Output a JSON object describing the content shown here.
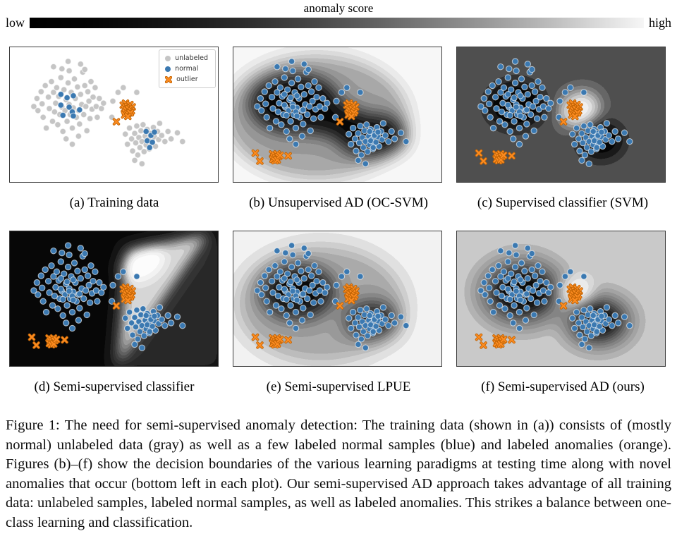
{
  "colorbar": {
    "title": "anomaly score",
    "low": "low",
    "high": "high"
  },
  "legend": {
    "unlabeled": "unlabeled",
    "normal": "normal",
    "outlier": "outlier"
  },
  "panels": [
    {
      "id": "a",
      "caption": "(a) Training data",
      "unlabeled_color": "gray",
      "show_novel": false,
      "background": "plain-white",
      "legend": true
    },
    {
      "id": "b",
      "caption": "(b) Unsupervised AD (OC-SVM)",
      "unlabeled_color": "blue",
      "show_novel": true,
      "background": "oc-svm-density-contours",
      "legend": false
    },
    {
      "id": "c",
      "caption": "(c) Supervised classifier (SVM)",
      "unlabeled_color": "blue",
      "show_novel": true,
      "background": "svm-decision-contours",
      "legend": false
    },
    {
      "id": "d",
      "caption": "(d) Semi-supervised classifier",
      "unlabeled_color": "blue",
      "show_novel": true,
      "background": "classifier-wedge-contours",
      "legend": false
    },
    {
      "id": "e",
      "caption": "(e) Semi-supervised LPUE",
      "unlabeled_color": "blue",
      "show_novel": true,
      "background": "lpue-density-contours",
      "legend": false
    },
    {
      "id": "f",
      "caption": "(f) Semi-supervised AD (ours)",
      "unlabeled_color": "blue",
      "show_novel": true,
      "background": "sad-density-contours",
      "legend": false
    }
  ],
  "figure_caption": "Figure 1: The need for semi-supervised anomaly detection: The training data (shown in (a)) consists of (mostly normal) unlabeled data (gray) as well as a few labeled normal samples (blue) and labeled anomalies (orange). Figures (b)–(f) show the decision boundaries of the various learning paradigms at testing time along with novel anomalies that occur (bottom left in each plot). Our semi-supervised AD approach takes advantage of all training data: unlabeled samples, labeled normal samples, as well as labeled anomalies. This strikes a balance between one-class learning and classification.",
  "colors": {
    "unlabeled": "#c5c5c5",
    "normal": "#3b79b1",
    "outlier": "#fd8c21",
    "outlier_edge": "#c06405",
    "marker_rim": "rgba(255,255,255,0.6)",
    "anomaly_score_low": "#000000",
    "anomaly_score_high": "#f6f6f6"
  },
  "points": {
    "cluster_big": [
      [
        0.115,
        0.44
      ],
      [
        0.13,
        0.38
      ],
      [
        0.135,
        0.47
      ],
      [
        0.15,
        0.33
      ],
      [
        0.155,
        0.42
      ],
      [
        0.16,
        0.52
      ],
      [
        0.17,
        0.285
      ],
      [
        0.175,
        0.6
      ],
      [
        0.185,
        0.37
      ],
      [
        0.19,
        0.455
      ],
      [
        0.2,
        0.255
      ],
      [
        0.205,
        0.55
      ],
      [
        0.21,
        0.335
      ],
      [
        0.215,
        0.48
      ],
      [
        0.22,
        0.415
      ],
      [
        0.225,
        0.3
      ],
      [
        0.23,
        0.575
      ],
      [
        0.235,
        0.365
      ],
      [
        0.24,
        0.5
      ],
      [
        0.245,
        0.225
      ],
      [
        0.25,
        0.445
      ],
      [
        0.255,
        0.625
      ],
      [
        0.26,
        0.315
      ],
      [
        0.265,
        0.47
      ],
      [
        0.27,
        0.39
      ],
      [
        0.275,
        0.55
      ],
      [
        0.28,
        0.265
      ],
      [
        0.285,
        0.425
      ],
      [
        0.29,
        0.5
      ],
      [
        0.295,
        0.335
      ],
      [
        0.3,
        0.6
      ],
      [
        0.305,
        0.45
      ],
      [
        0.31,
        0.235
      ],
      [
        0.315,
        0.38
      ],
      [
        0.32,
        0.52
      ],
      [
        0.325,
        0.295
      ],
      [
        0.33,
        0.47
      ],
      [
        0.335,
        0.57
      ],
      [
        0.34,
        0.35
      ],
      [
        0.345,
        0.425
      ],
      [
        0.35,
        0.185
      ],
      [
        0.355,
        0.5
      ],
      [
        0.36,
        0.285
      ],
      [
        0.365,
        0.44
      ],
      [
        0.37,
        0.62
      ],
      [
        0.375,
        0.33
      ],
      [
        0.38,
        0.4
      ],
      [
        0.385,
        0.53
      ],
      [
        0.39,
        0.255
      ],
      [
        0.395,
        0.46
      ],
      [
        0.4,
        0.37
      ],
      [
        0.41,
        0.3
      ],
      [
        0.415,
        0.44
      ],
      [
        0.42,
        0.52
      ],
      [
        0.43,
        0.38
      ],
      [
        0.44,
        0.455
      ],
      [
        0.45,
        0.415
      ],
      [
        0.21,
        0.145
      ],
      [
        0.25,
        0.16
      ],
      [
        0.28,
        0.105
      ],
      [
        0.285,
        0.175
      ],
      [
        0.34,
        0.125
      ],
      [
        0.36,
        0.165
      ],
      [
        0.27,
        0.68
      ],
      [
        0.3,
        0.72
      ],
      [
        0.33,
        0.66
      ],
      [
        0.495,
        0.4
      ],
      [
        0.52,
        0.335
      ],
      [
        0.545,
        0.3
      ],
      [
        0.61,
        0.335
      ],
      [
        0.49,
        0.52
      ]
    ],
    "cluster_small": [
      [
        0.555,
        0.645
      ],
      [
        0.565,
        0.72
      ],
      [
        0.575,
        0.6
      ],
      [
        0.585,
        0.68
      ],
      [
        0.59,
        0.77
      ],
      [
        0.6,
        0.64
      ],
      [
        0.605,
        0.71
      ],
      [
        0.61,
        0.585
      ],
      [
        0.615,
        0.8
      ],
      [
        0.62,
        0.67
      ],
      [
        0.625,
        0.745
      ],
      [
        0.63,
        0.62
      ],
      [
        0.635,
        0.7
      ],
      [
        0.64,
        0.575
      ],
      [
        0.645,
        0.775
      ],
      [
        0.65,
        0.66
      ],
      [
        0.655,
        0.725
      ],
      [
        0.66,
        0.61
      ],
      [
        0.665,
        0.685
      ],
      [
        0.67,
        0.755
      ],
      [
        0.675,
        0.64
      ],
      [
        0.68,
        0.71
      ],
      [
        0.69,
        0.595
      ],
      [
        0.695,
        0.665
      ],
      [
        0.7,
        0.735
      ],
      [
        0.71,
        0.625
      ],
      [
        0.715,
        0.685
      ],
      [
        0.72,
        0.565
      ],
      [
        0.73,
        0.655
      ],
      [
        0.745,
        0.7
      ],
      [
        0.76,
        0.625
      ],
      [
        0.775,
        0.68
      ],
      [
        0.6,
        0.84
      ],
      [
        0.635,
        0.865
      ],
      [
        0.805,
        0.635
      ],
      [
        0.83,
        0.7
      ]
    ],
    "labeled_normal": [
      [
        0.245,
        0.35
      ],
      [
        0.275,
        0.375
      ],
      [
        0.305,
        0.36
      ],
      [
        0.245,
        0.43
      ],
      [
        0.285,
        0.445
      ],
      [
        0.3,
        0.48
      ],
      [
        0.255,
        0.505
      ],
      [
        0.305,
        0.51
      ],
      [
        0.335,
        0.465
      ],
      [
        0.655,
        0.625
      ],
      [
        0.678,
        0.655
      ],
      [
        0.695,
        0.63
      ],
      [
        0.66,
        0.695
      ],
      [
        0.685,
        0.705
      ],
      [
        0.672,
        0.745
      ]
    ],
    "outliers_train": [
      [
        0.545,
        0.43
      ],
      [
        0.556,
        0.415
      ],
      [
        0.566,
        0.44
      ],
      [
        0.577,
        0.425
      ],
      [
        0.588,
        0.443
      ],
      [
        0.55,
        0.457
      ],
      [
        0.561,
        0.468
      ],
      [
        0.572,
        0.458
      ],
      [
        0.584,
        0.472
      ],
      [
        0.556,
        0.483
      ],
      [
        0.568,
        0.492
      ],
      [
        0.579,
        0.487
      ],
      [
        0.552,
        0.503
      ],
      [
        0.567,
        0.513
      ],
      [
        0.512,
        0.553
      ]
    ],
    "outliers_novel": [
      [
        0.188,
        0.792
      ],
      [
        0.199,
        0.801
      ],
      [
        0.21,
        0.792
      ],
      [
        0.194,
        0.815
      ],
      [
        0.205,
        0.822
      ],
      [
        0.216,
        0.812
      ],
      [
        0.19,
        0.832
      ],
      [
        0.2,
        0.842
      ],
      [
        0.211,
        0.836
      ],
      [
        0.224,
        0.802
      ],
      [
        0.105,
        0.786
      ],
      [
        0.127,
        0.845
      ],
      [
        0.263,
        0.806
      ]
    ]
  }
}
